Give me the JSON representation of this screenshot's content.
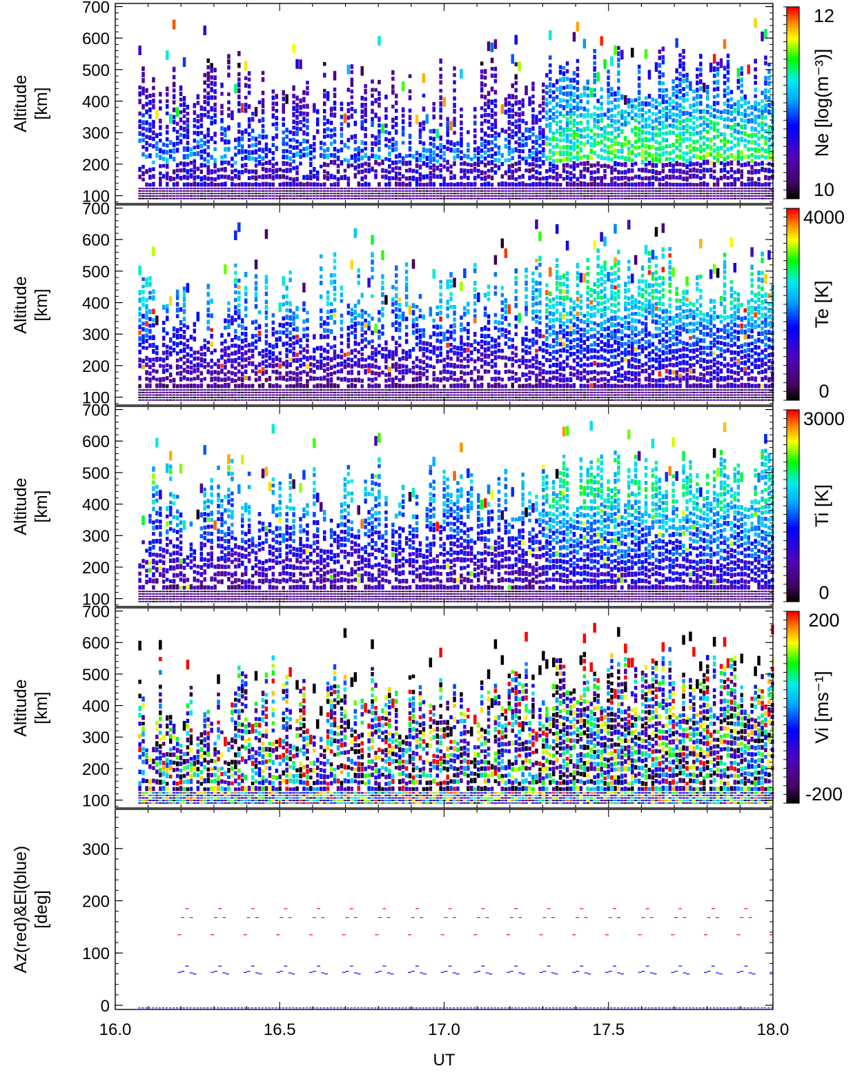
{
  "chart_data": [
    {
      "type": "heatmap",
      "panel": "ne",
      "ylabel": [
        "Altitude",
        "[km]"
      ],
      "yticks": [
        100,
        200,
        300,
        400,
        500,
        600,
        700
      ],
      "ylim": [
        75,
        710
      ],
      "xlim": [
        16.0,
        18.0
      ],
      "colorbar": {
        "label": "Ne [log(m⁻³)]",
        "ticks": [
          "12",
          "10"
        ],
        "range": [
          9.5,
          12.3
        ]
      },
      "value_range": [
        9.6,
        11.6
      ],
      "altitude_range": [
        100,
        650
      ],
      "sampling": {
        "x_start": 16.07,
        "x_end": 18.0,
        "dx": 0.0104
      }
    },
    {
      "type": "heatmap",
      "panel": "te",
      "ylabel": [
        "Altitude",
        "[km]"
      ],
      "yticks": [
        100,
        200,
        300,
        400,
        500,
        600,
        700
      ],
      "ylim": [
        75,
        710
      ],
      "xlim": [
        16.0,
        18.0
      ],
      "colorbar": {
        "label": "Te [K]",
        "ticks": [
          "4000",
          "0"
        ],
        "range": [
          0,
          4000
        ]
      },
      "value_range": [
        200,
        3500
      ],
      "altitude_range": [
        100,
        650
      ]
    },
    {
      "type": "heatmap",
      "panel": "ti",
      "ylabel": [
        "Altitude",
        "[km]"
      ],
      "yticks": [
        100,
        200,
        300,
        400,
        500,
        600,
        700
      ],
      "ylim": [
        75,
        710
      ],
      "xlim": [
        16.0,
        18.0
      ],
      "colorbar": {
        "label": "Ti [K]",
        "ticks": [
          "3000",
          "0"
        ],
        "range": [
          0,
          3000
        ]
      },
      "value_range": [
        100,
        2800
      ],
      "altitude_range": [
        100,
        650
      ]
    },
    {
      "type": "heatmap",
      "panel": "vi",
      "ylabel": [
        "Altitude",
        "[km]"
      ],
      "yticks": [
        100,
        200,
        300,
        400,
        500,
        600,
        700
      ],
      "ylim": [
        75,
        710
      ],
      "xlim": [
        16.0,
        18.0
      ],
      "colorbar": {
        "label": "Vi [ms⁻¹]",
        "ticks": [
          "200",
          "-200"
        ],
        "range": [
          -220,
          220
        ]
      },
      "value_range": [
        -220,
        220
      ],
      "altitude_range": [
        100,
        650
      ]
    },
    {
      "type": "scatter",
      "panel": "azel",
      "ylabel": [
        "Az(red)&El(blue)",
        "[deg]"
      ],
      "yticks": [
        0,
        100,
        200,
        300
      ],
      "ylim": [
        -8,
        375
      ],
      "xlim": [
        16.0,
        18.0
      ],
      "xticks": [
        "16.0",
        "16.5",
        "17.0",
        "17.5",
        "18.0"
      ],
      "xlabel": "UT",
      "series": [
        {
          "name": "Az",
          "color": "#ff0000",
          "cycle_start": 16.19,
          "cycle_period": 0.1,
          "pattern": [
            [
              0,
              135
            ],
            [
              0.01,
              168
            ],
            [
              0.023,
              185
            ],
            [
              0.036,
              168
            ]
          ]
        },
        {
          "name": "El",
          "color": "#0000ff",
          "cycle_start": 16.19,
          "cycle_period": 0.1,
          "pattern": [
            [
              0,
              63
            ],
            [
              0.01,
              65
            ],
            [
              0.023,
              75
            ],
            [
              0.036,
              62
            ],
            [
              0.046,
              60
            ]
          ]
        },
        {
          "name": "El-baseline",
          "color": "#0000ff",
          "constant": -5
        }
      ]
    }
  ]
}
